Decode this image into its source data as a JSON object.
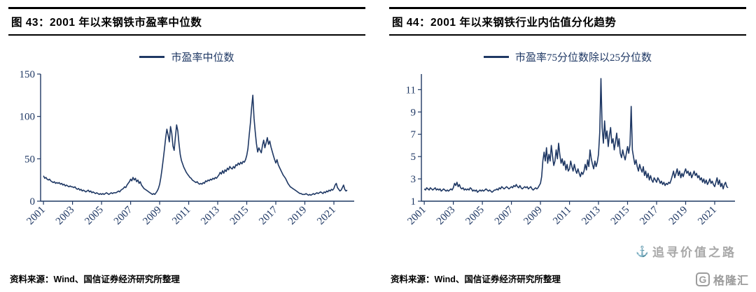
{
  "watermark": {
    "anchor_icon": "⚓",
    "text": "追寻价值之路",
    "logo_letter": "G",
    "logo_text": "格隆汇",
    "color": "#a8a8a8"
  },
  "chart_data": [
    {
      "type": "line",
      "title": "图 43：2001 年以来钢铁市盈率中位数",
      "legend": [
        "市盈率中位数"
      ],
      "source": "资料来源：Wind、国信证券经济研究所整理",
      "line_color": "#1f3864",
      "axis_color": "#1f3864",
      "x_start": 2001,
      "x_step_months": 1,
      "xlim": [
        2000.8,
        2022.4
      ],
      "ylim": [
        0,
        150
      ],
      "y_ticks": [
        0,
        50,
        100,
        150
      ],
      "x_tick_labels": [
        "2001",
        "2003",
        "2005",
        "2007",
        "2009",
        "2011",
        "2013",
        "2015",
        "2017",
        "2019",
        "2021"
      ],
      "grid": false,
      "legend_position": "top",
      "values": [
        30,
        27,
        28,
        26,
        25,
        26,
        24,
        23,
        22,
        23,
        21,
        22,
        21,
        22,
        20,
        21,
        19,
        20,
        18,
        19,
        18,
        17,
        18,
        17,
        17,
        16,
        17,
        15,
        14,
        15,
        13,
        14,
        12,
        13,
        12,
        11,
        12,
        13,
        11,
        12,
        10,
        11,
        10,
        9,
        10,
        9,
        8,
        9,
        8,
        9,
        8,
        9,
        10,
        9,
        8,
        9,
        10,
        9,
        10,
        10,
        10,
        11,
        12,
        11,
        13,
        14,
        15,
        17,
        16,
        19,
        21,
        23,
        26,
        24,
        28,
        25,
        27,
        23,
        25,
        21,
        23,
        19,
        17,
        15,
        14,
        13,
        12,
        11,
        10,
        9,
        8,
        9,
        8,
        10,
        12,
        15,
        20,
        28,
        38,
        50,
        62,
        75,
        85,
        78,
        70,
        88,
        80,
        65,
        60,
        75,
        90,
        83,
        68,
        55,
        48,
        44,
        40,
        37,
        34,
        32,
        30,
        28,
        27,
        25,
        24,
        23,
        22,
        23,
        21,
        20,
        21,
        20,
        22,
        21,
        24,
        23,
        25,
        24,
        26,
        25,
        27,
        26,
        28,
        27,
        29,
        31,
        34,
        32,
        36,
        33,
        37,
        35,
        39,
        37,
        41,
        39,
        38,
        41,
        39,
        43,
        42,
        45,
        43,
        46,
        44,
        47,
        46,
        49,
        54,
        62,
        78,
        92,
        110,
        125,
        98,
        82,
        68,
        58,
        63,
        60,
        57,
        66,
        72,
        63,
        69,
        75,
        67,
        71,
        64,
        59,
        54,
        49,
        45,
        49,
        43,
        40,
        37,
        34,
        31,
        29,
        27,
        24,
        21,
        19,
        17,
        16,
        15,
        14,
        13,
        12,
        11,
        10,
        9,
        9,
        8,
        8,
        8,
        9,
        8,
        7,
        8,
        7,
        8,
        9,
        8,
        9,
        10,
        9,
        10,
        11,
        10,
        9,
        11,
        10,
        12,
        11,
        13,
        12,
        14,
        13,
        15,
        19,
        21,
        16,
        14,
        12,
        13,
        16,
        19,
        14,
        12,
        13
      ]
    },
    {
      "type": "line",
      "title": "图 44：2001 年以来钢铁行业内估值分化趋势",
      "legend": [
        "市盈率75分位数除以25分位数"
      ],
      "source": "资料来源：Wind、国信证券经济研究所整理",
      "line_color": "#1f3864",
      "axis_color": "#1f3864",
      "x_start": 2001,
      "x_step_months": 1,
      "xlim": [
        2000.8,
        2022.4
      ],
      "ylim": [
        1,
        12.4
      ],
      "y_ticks": [
        1,
        3,
        5,
        7,
        9,
        11
      ],
      "x_tick_labels": [
        "2001",
        "2003",
        "2005",
        "2007",
        "2009",
        "2011",
        "2013",
        "2015",
        "2017",
        "2019",
        "2021"
      ],
      "grid": false,
      "legend_position": "top",
      "values": [
        2.1,
        2.0,
        2.2,
        2.1,
        2.0,
        2.2,
        2.1,
        2.0,
        2.1,
        2.2,
        2.0,
        2.1,
        2.0,
        2.1,
        1.9,
        2.0,
        2.1,
        2.0,
        1.9,
        2.0,
        1.9,
        2.0,
        2.1,
        2.0,
        2.2,
        2.6,
        2.4,
        2.7,
        2.3,
        2.5,
        2.2,
        2.1,
        2.2,
        2.0,
        2.1,
        2.0,
        2.1,
        2.0,
        2.2,
        2.1,
        1.9,
        2.0,
        1.9,
        2.0,
        1.8,
        1.9,
        2.0,
        1.9,
        2.0,
        1.9,
        2.0,
        2.1,
        2.0,
        1.9,
        2.0,
        1.9,
        1.8,
        1.9,
        2.0,
        2.0,
        2.1,
        2.0,
        2.2,
        2.1,
        2.3,
        2.2,
        2.1,
        2.2,
        2.3,
        2.2,
        2.1,
        2.2,
        2.3,
        2.2,
        2.4,
        2.3,
        2.5,
        2.3,
        2.2,
        2.4,
        2.2,
        2.1,
        2.2,
        2.3,
        2.2,
        2.3,
        2.1,
        2.2,
        2.3,
        2.1,
        2.0,
        2.1,
        2.2,
        2.1,
        2.2,
        2.4,
        2.6,
        3.2,
        4.6,
        5.4,
        4.6,
        5.8,
        4.4,
        5.2,
        4.6,
        6.0,
        5.0,
        4.2,
        4.6,
        5.6,
        4.8,
        6.2,
        5.2,
        4.4,
        4.8,
        4.2,
        4.6,
        3.8,
        4.3,
        3.7,
        3.9,
        4.6,
        4.1,
        3.7,
        4.3,
        3.8,
        3.5,
        3.9,
        3.5,
        3.2,
        3.6,
        3.4,
        3.7,
        4.3,
        3.8,
        4.7,
        4.1,
        5.6,
        4.8,
        4.3,
        3.9,
        4.6,
        4.1,
        4.5,
        5.2,
        7.2,
        12.0,
        7.6,
        6.2,
        8.2,
        6.6,
        7.3,
        5.9,
        6.9,
        7.6,
        6.2,
        6.6,
        5.6,
        6.3,
        7.1,
        5.9,
        6.6,
        5.3,
        4.9,
        5.6,
        5.1,
        4.7,
        5.3,
        5.9,
        5.3,
        6.1,
        9.5,
        5.6,
        4.9,
        4.3,
        4.7,
        4.1,
        3.7,
        4.3,
        3.9,
        3.6,
        4.1,
        3.3,
        3.7,
        3.1,
        3.5,
        2.9,
        3.3,
        2.9,
        2.7,
        3.1,
        2.9,
        2.7,
        3.1,
        2.9,
        2.6,
        2.8,
        2.5,
        2.7,
        2.4,
        2.6,
        2.5,
        2.7,
        2.6,
        2.9,
        3.3,
        3.7,
        3.1,
        3.5,
        3.9,
        3.3,
        3.7,
        3.1,
        3.5,
        3.2,
        3.6,
        3.9,
        3.5,
        3.7,
        3.3,
        3.6,
        3.1,
        3.4,
        3.7,
        3.3,
        3.5,
        3.1,
        3.3,
        2.9,
        3.1,
        2.7,
        3.0,
        2.6,
        2.9,
        2.5,
        2.7,
        3.0,
        2.6,
        2.8,
        2.5,
        2.3,
        2.7,
        3.1,
        2.5,
        2.9,
        2.3,
        2.6,
        2.1,
        2.5,
        2.7,
        2.3,
        2.2
      ]
    }
  ]
}
